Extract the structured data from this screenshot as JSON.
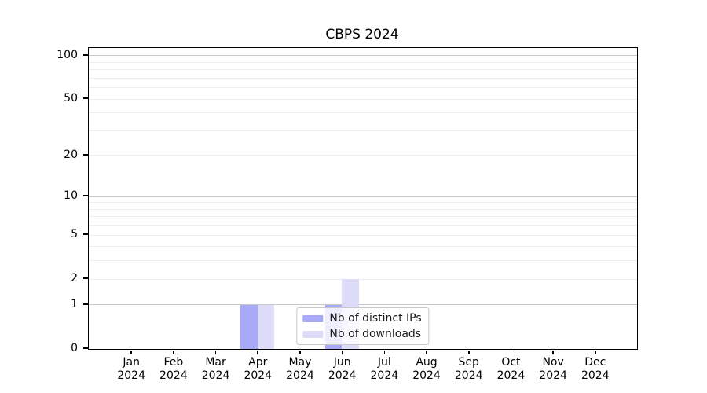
{
  "chart_data": {
    "type": "bar",
    "title": "CBPS 2024",
    "categories": [
      "Jan",
      "Feb",
      "Mar",
      "Apr",
      "May",
      "Jun",
      "Jul",
      "Aug",
      "Sep",
      "Oct",
      "Nov",
      "Dec"
    ],
    "x_year": "2024",
    "series": [
      {
        "name": "Nb of distinct IPs",
        "color": "#a8aaf7",
        "values": [
          0,
          0,
          0,
          1,
          0,
          1,
          0,
          0,
          0,
          0,
          0,
          0
        ]
      },
      {
        "name": "Nb of downloads",
        "color": "#dcdcf8",
        "values": [
          0,
          0,
          0,
          1,
          0,
          2,
          0,
          0,
          0,
          0,
          0,
          0
        ]
      }
    ],
    "yscale": "log1p",
    "ylim": [
      0,
      113
    ],
    "ytick_values": [
      0,
      1,
      2,
      5,
      10,
      20,
      50,
      100
    ],
    "y_major_gridlines": [
      1,
      10,
      100
    ],
    "y_minor_gridlines": [
      3,
      4,
      6,
      7,
      8,
      9,
      30,
      40,
      60,
      70,
      80,
      90
    ],
    "legend_position": "lower center",
    "grid": true,
    "colors": {
      "grid_major": "#c8c8c8",
      "grid_minor": "#ededed",
      "axis": "#000000",
      "background": "#ffffff"
    }
  }
}
